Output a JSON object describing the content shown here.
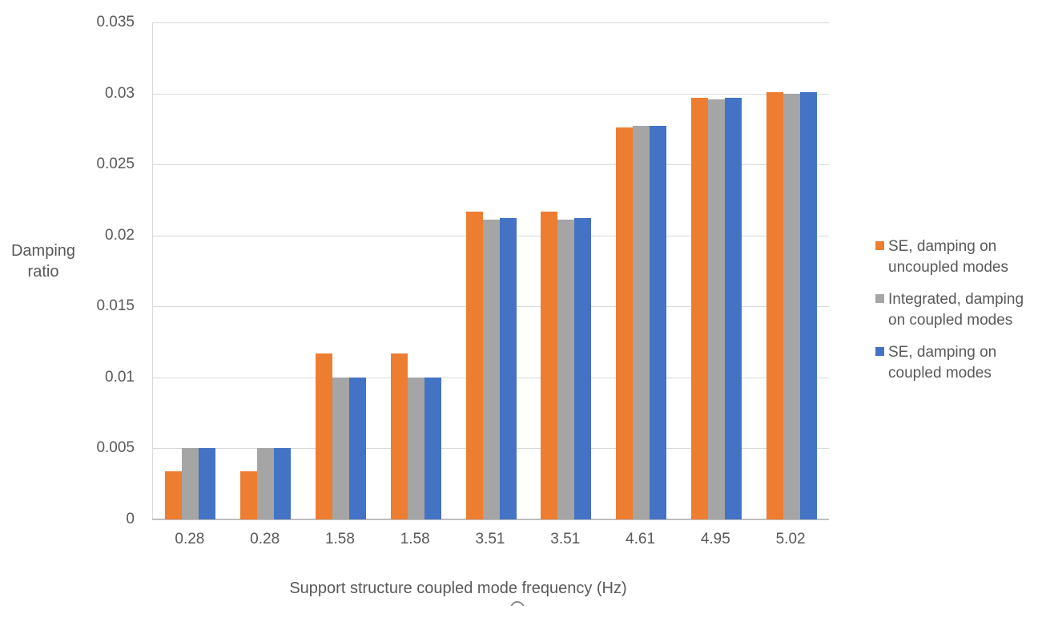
{
  "chart_data": {
    "type": "bar",
    "title": "",
    "xlabel": "Support structure coupled mode frequency (Hz)",
    "ylabel": "Damping ratio",
    "ylabel_lines": [
      "Damping",
      "ratio"
    ],
    "ylim": [
      0,
      0.035
    ],
    "y_tick_labels": [
      "0",
      "0.005",
      "0.01",
      "0.015",
      "0.02",
      "0.025",
      "0.03",
      "0.035"
    ],
    "grid": true,
    "legend_position": "right",
    "categories": [
      "0.28",
      "0.28",
      "1.58",
      "1.58",
      "3.51",
      "3.51",
      "4.61",
      "4.95",
      "5.02"
    ],
    "series": [
      {
        "name": "SE, damping on uncoupled modes",
        "legend_lines": [
          "SE, damping on",
          "uncoupled modes"
        ],
        "color": "#ED7D31",
        "values": [
          0.0034,
          0.0034,
          0.0117,
          0.0117,
          0.0217,
          0.0217,
          0.0276,
          0.0297,
          0.0301
        ]
      },
      {
        "name": "Integrated, damping on coupled modes",
        "legend_lines": [
          "Integrated, damping",
          "on coupled modes"
        ],
        "color": "#A5A5A5",
        "values": [
          0.005,
          0.005,
          0.01,
          0.01,
          0.0211,
          0.0211,
          0.0277,
          0.0296,
          0.03
        ]
      },
      {
        "name": "SE, damping on coupled modes",
        "legend_lines": [
          "SE, damping on",
          "coupled modes"
        ],
        "color": "#4472C4",
        "values": [
          0.005,
          0.005,
          0.01,
          0.01,
          0.0212,
          0.0212,
          0.0277,
          0.0297,
          0.0301
        ]
      }
    ],
    "colors": {
      "text": "#595959",
      "gridline": "#D9D9D9",
      "axis_line": "#BFBFBF",
      "background": "#FFFFFF"
    }
  }
}
